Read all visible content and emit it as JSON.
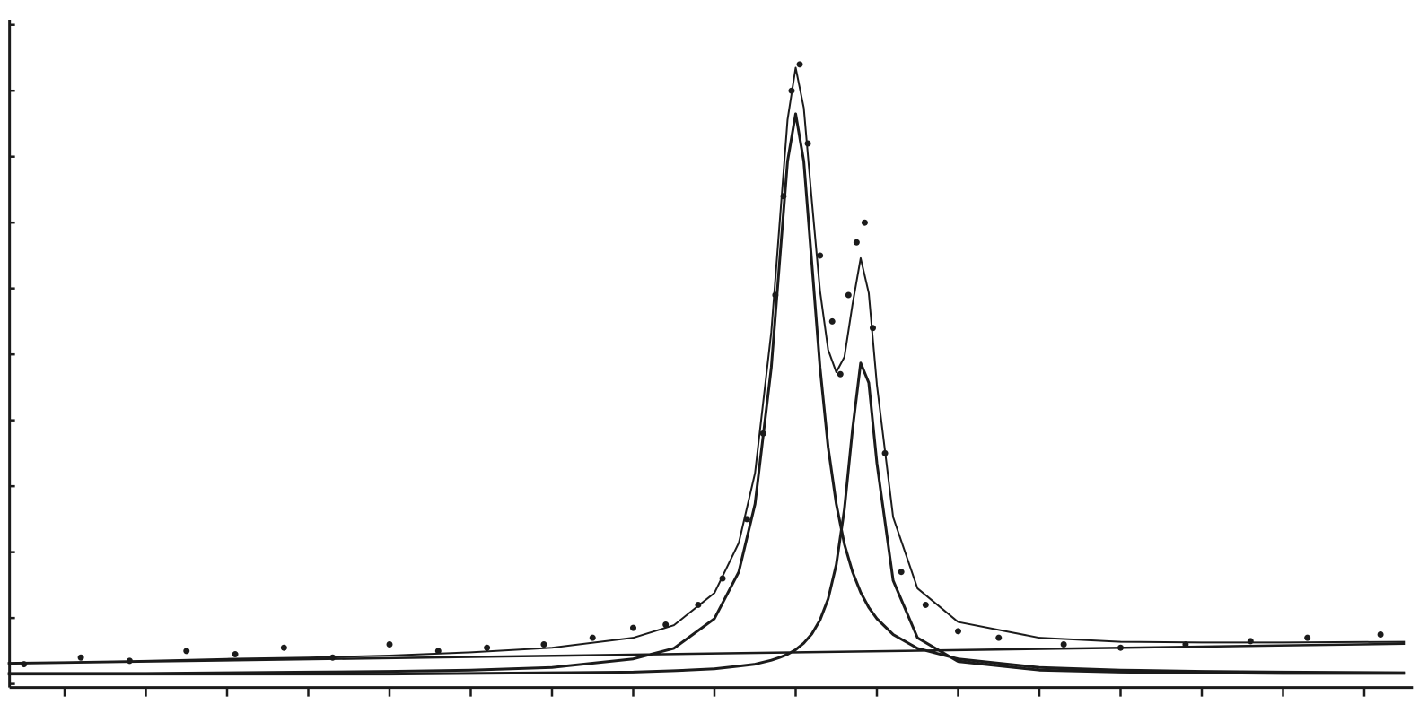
{
  "chart_data": {
    "type": "scatter",
    "color": "#1b1b1b",
    "xlim": [
      -0.7,
      16.6
    ],
    "ylim": [
      -0.25,
      10.35
    ],
    "xticks": [
      0,
      1,
      2,
      3,
      4,
      5,
      6,
      7,
      8,
      9,
      10,
      11,
      12,
      13,
      14,
      15,
      16
    ],
    "yticks": [
      0,
      1,
      2,
      3,
      4,
      5,
      6,
      7,
      8,
      9,
      10
    ],
    "series": [
      {
        "style": "points",
        "x": [
          -0.5,
          0.2,
          0.8,
          1.5,
          2.1,
          2.7,
          3.3,
          4.0,
          4.6,
          5.2,
          5.9,
          6.5,
          7.0,
          7.4,
          7.8,
          8.1,
          8.4,
          8.6,
          8.75,
          8.85,
          8.95,
          9.05,
          9.15,
          9.3,
          9.45,
          9.55,
          9.65,
          9.75,
          9.85,
          9.95,
          10.1,
          10.3,
          10.6,
          11.0,
          11.5,
          12.3,
          13.0,
          13.8,
          14.6,
          15.3,
          16.2
        ],
        "values": [
          0.3,
          0.4,
          0.35,
          0.5,
          0.45,
          0.55,
          0.4,
          0.6,
          0.5,
          0.55,
          0.6,
          0.7,
          0.85,
          0.9,
          1.2,
          1.6,
          2.5,
          3.8,
          5.9,
          7.4,
          9.0,
          9.4,
          8.2,
          6.5,
          5.5,
          4.7,
          5.9,
          6.7,
          7.0,
          5.4,
          3.5,
          1.7,
          1.2,
          0.8,
          0.7,
          0.6,
          0.55,
          0.6,
          0.65,
          0.7,
          0.75
        ]
      },
      {
        "style": "line",
        "width": 2,
        "x": [
          -0.7,
          0,
          1,
          2,
          3,
          4,
          5,
          6,
          7,
          7.5,
          8,
          8.3,
          8.5,
          8.7,
          8.8,
          8.9,
          9.0,
          9.1,
          9.2,
          9.3,
          9.4,
          9.5,
          9.6,
          9.7,
          9.8,
          9.9,
          10.0,
          10.2,
          10.5,
          11,
          12,
          13,
          14,
          15,
          16.5
        ],
        "values": [
          0.32,
          0.33,
          0.35,
          0.38,
          0.4,
          0.43,
          0.48,
          0.55,
          0.7,
          0.89,
          1.38,
          2.14,
          3.2,
          5.34,
          6.95,
          8.56,
          9.35,
          8.74,
          7.32,
          5.96,
          5.07,
          4.73,
          4.96,
          5.76,
          6.46,
          5.93,
          4.54,
          2.53,
          1.45,
          0.94,
          0.7,
          0.64,
          0.63,
          0.63,
          0.64
        ]
      },
      {
        "style": "line",
        "width": 3,
        "x": [
          -0.7,
          0,
          1,
          2,
          3,
          4,
          5,
          6,
          7,
          7.5,
          8,
          8.3,
          8.5,
          8.7,
          8.8,
          8.9,
          9.0,
          9.1,
          9.2,
          9.3,
          9.4,
          9.5,
          9.6,
          9.7,
          9.8,
          9.9,
          10.0,
          10.2,
          10.5,
          11,
          12,
          13,
          14,
          15,
          16.5
        ],
        "values": [
          0.16,
          0.16,
          0.16,
          0.17,
          0.18,
          0.19,
          0.21,
          0.25,
          0.38,
          0.54,
          0.99,
          1.7,
          2.73,
          4.8,
          6.37,
          7.93,
          8.65,
          7.93,
          6.37,
          4.8,
          3.59,
          2.73,
          2.12,
          1.7,
          1.39,
          1.16,
          0.99,
          0.75,
          0.54,
          0.38,
          0.25,
          0.21,
          0.19,
          0.18,
          0.17
        ]
      },
      {
        "style": "line",
        "width": 3,
        "x": [
          -0.7,
          0,
          1,
          2,
          3,
          4,
          5,
          6,
          7,
          7.5,
          8,
          8.3,
          8.5,
          8.7,
          8.8,
          8.9,
          9.0,
          9.1,
          9.2,
          9.3,
          9.4,
          9.5,
          9.6,
          9.7,
          9.8,
          9.9,
          10.0,
          10.2,
          10.5,
          11,
          12,
          13,
          14,
          15,
          16.5
        ],
        "values": [
          0.15,
          0.15,
          0.15,
          0.15,
          0.15,
          0.15,
          0.16,
          0.17,
          0.18,
          0.2,
          0.23,
          0.27,
          0.3,
          0.36,
          0.4,
          0.45,
          0.52,
          0.62,
          0.76,
          0.97,
          1.29,
          1.81,
          2.65,
          3.86,
          4.87,
          4.57,
          3.35,
          1.57,
          0.7,
          0.34,
          0.21,
          0.18,
          0.17,
          0.16,
          0.16
        ]
      },
      {
        "style": "line",
        "width": 2.5,
        "x": [
          -0.7,
          16.5
        ],
        "values": [
          0.31,
          0.61
        ]
      }
    ]
  }
}
